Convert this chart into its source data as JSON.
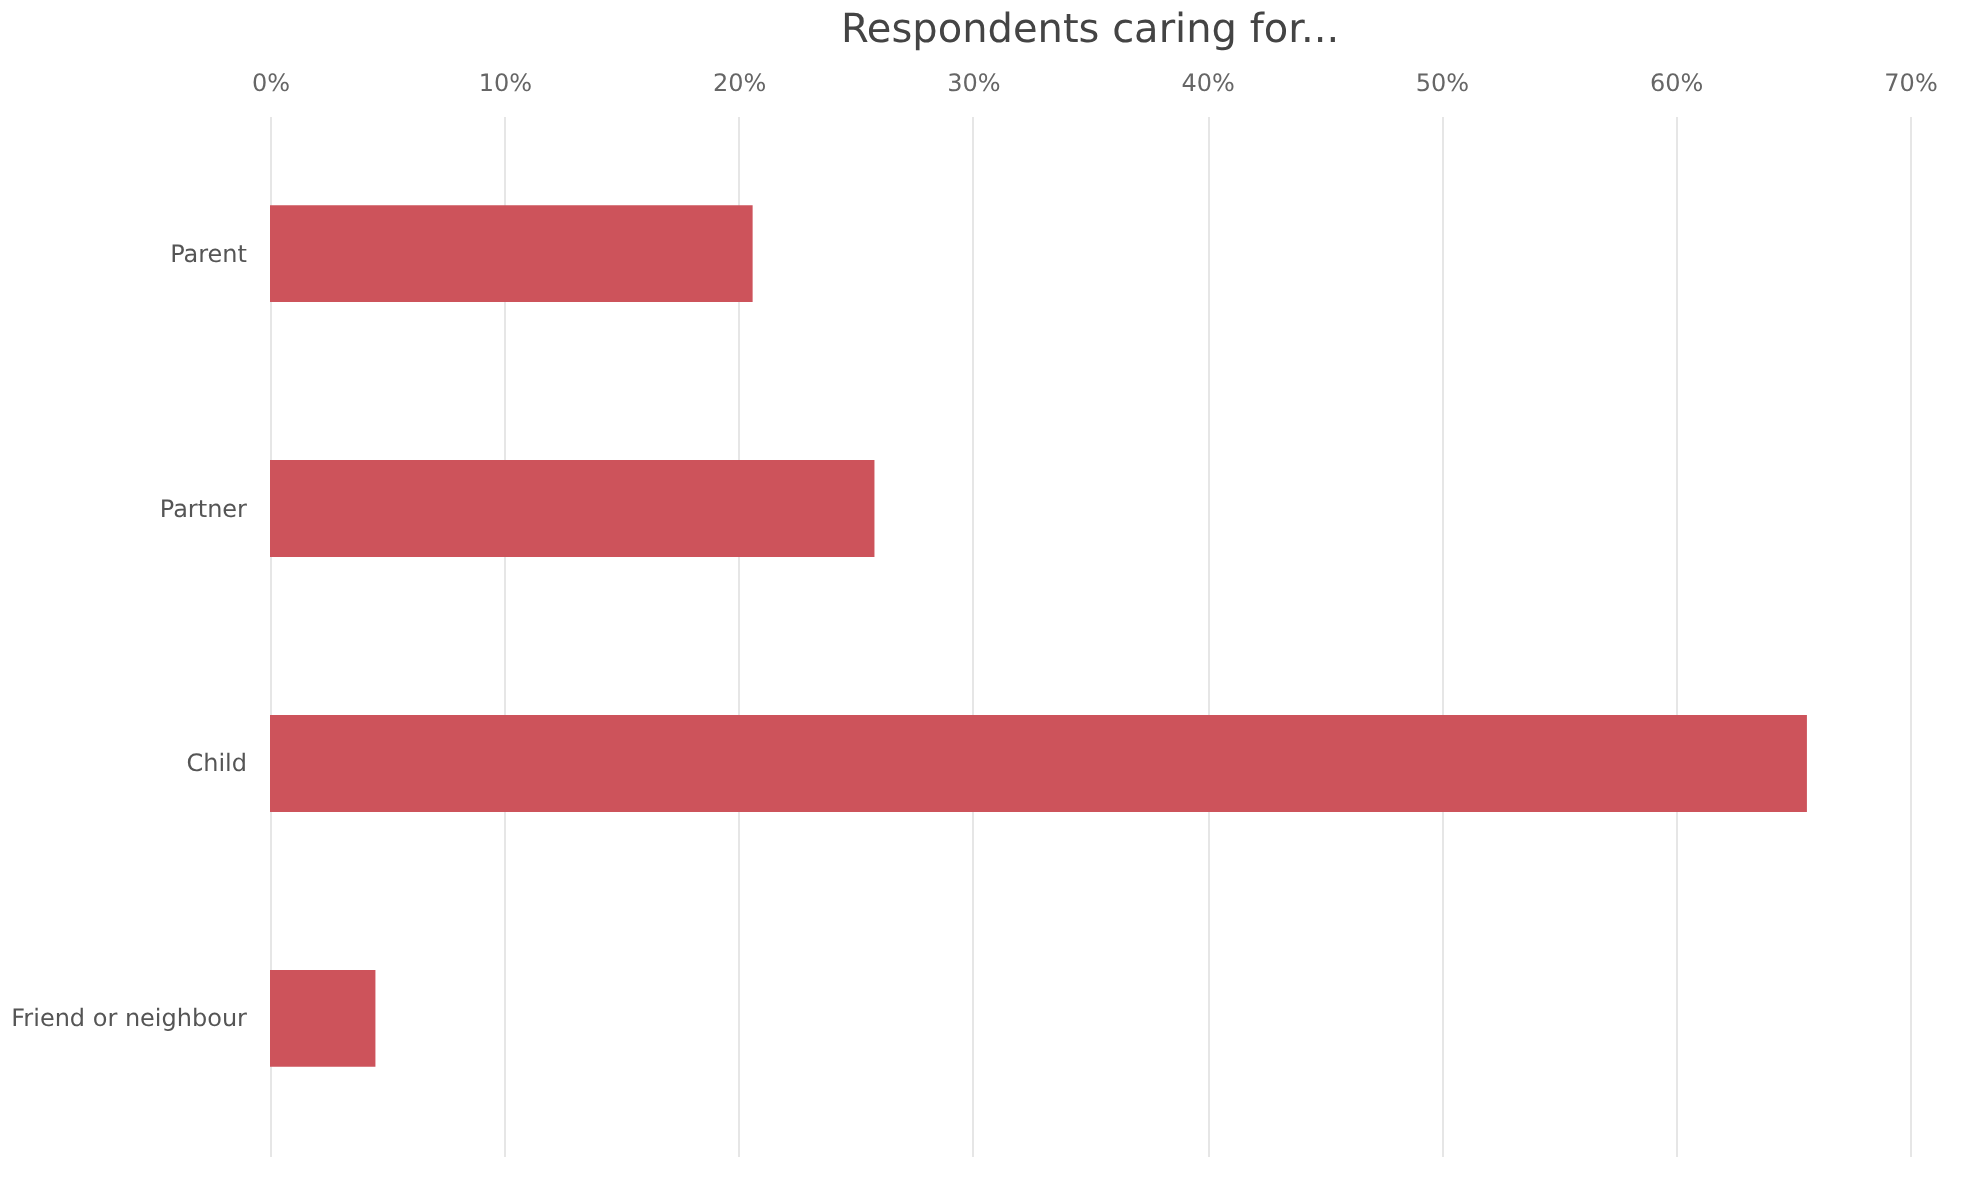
{
  "chart_data": {
    "type": "bar",
    "orientation": "horizontal",
    "title": "Respondents caring for...",
    "categories": [
      "Parent",
      "Partner",
      "Child",
      "Friend or neighbour"
    ],
    "values": [
      20.6,
      25.8,
      65.6,
      4.5
    ],
    "color": "#cd535b",
    "xlim": [
      0,
      70
    ],
    "xticks": [
      {
        "value": 0,
        "label": "0%"
      },
      {
        "value": 10,
        "label": "10%"
      },
      {
        "value": 20,
        "label": "20%"
      },
      {
        "value": 30,
        "label": "30%"
      },
      {
        "value": 40,
        "label": "40%"
      },
      {
        "value": 50,
        "label": "50%"
      },
      {
        "value": 60,
        "label": "60%"
      },
      {
        "value": 70,
        "label": "70%"
      }
    ],
    "grid": "x"
  }
}
